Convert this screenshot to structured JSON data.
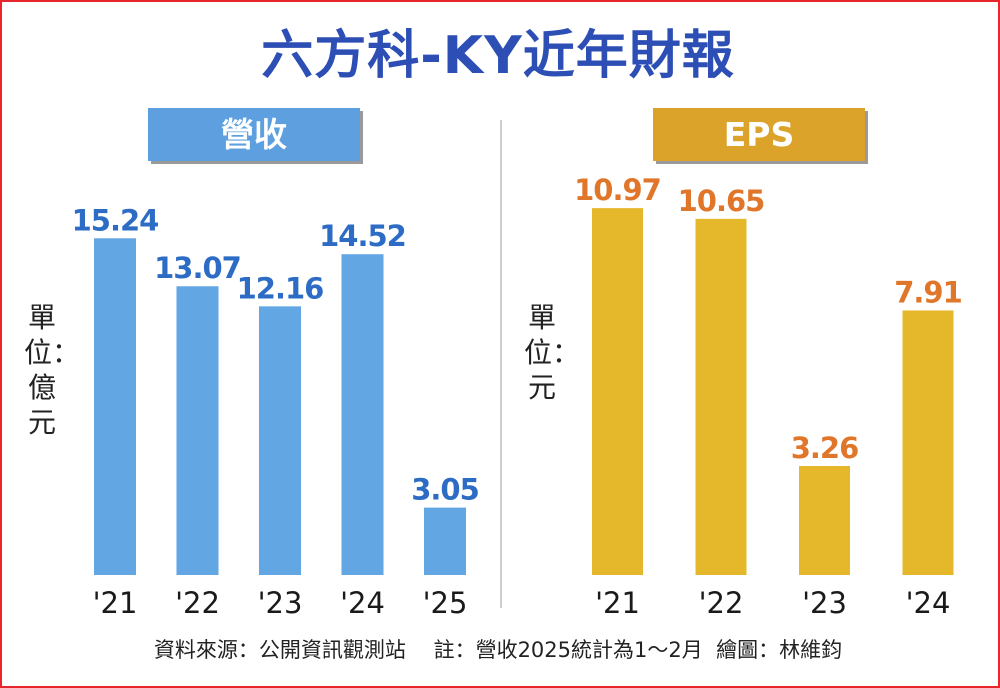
{
  "title": "六方科-KY近年財報",
  "chart_data": [
    {
      "type": "bar",
      "title": "營收",
      "unit_label": "單位：億元",
      "categories": [
        "'21",
        "'22",
        "'23",
        "'24",
        "'25"
      ],
      "values": [
        15.24,
        13.07,
        12.16,
        14.52,
        3.05
      ],
      "value_labels": [
        "15.24",
        "13.07",
        "12.16",
        "14.52",
        "3.05"
      ],
      "ylim": [
        0,
        17.5
      ],
      "grid": false,
      "bar_color": "#62a6e4",
      "label_color": "#2d6cc4",
      "header_color": "#5d9fdf"
    },
    {
      "type": "bar",
      "title": "EPS",
      "unit_label": "單位：元",
      "categories": [
        "'21",
        "'22",
        "'23",
        "'24"
      ],
      "values": [
        10.97,
        10.65,
        3.26,
        7.91
      ],
      "value_labels": [
        "10.97",
        "10.65",
        "3.26",
        "7.91"
      ],
      "ylim": [
        0,
        12.6
      ],
      "grid": false,
      "bar_color": "#e5b72a",
      "label_color": "#e0762a",
      "header_color": "#dca32a"
    }
  ],
  "footer": "資料來源：公開資訊觀測站　 註：營收2025統計為1～2月  繪圖：林維鈞",
  "colors": {
    "border": "#e8262b",
    "title": "#2d4fb5"
  }
}
